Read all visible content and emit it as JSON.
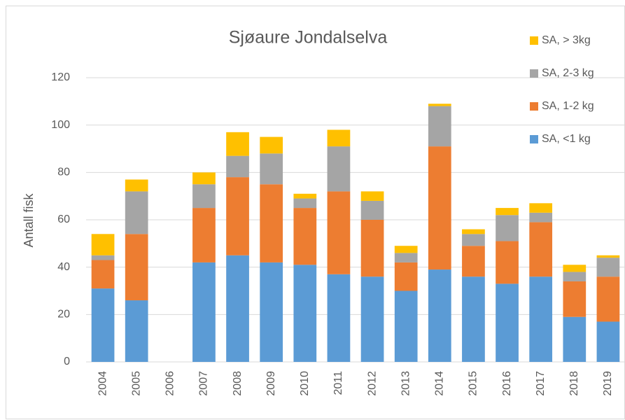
{
  "chart_data": {
    "type": "stacked-bar",
    "title": "Sjøaure Jondalselva",
    "y_label": "Antall fisk",
    "categories": [
      "2004",
      "2005",
      "2006",
      "2007",
      "2008",
      "2009",
      "2010",
      "2011",
      "2012",
      "2013",
      "2014",
      "2015",
      "2016",
      "2017",
      "2018",
      "2019"
    ],
    "series": [
      {
        "name": "SA, <1 kg",
        "color": "#5b9bd5",
        "values": [
          31,
          26,
          null,
          42,
          45,
          42,
          41,
          37,
          36,
          30,
          39,
          36,
          33,
          36,
          19,
          17
        ]
      },
      {
        "name": "SA, 1-2 kg",
        "color": "#ed7d31",
        "values": [
          12,
          28,
          null,
          23,
          33,
          33,
          24,
          35,
          24,
          12,
          52,
          13,
          18,
          23,
          15,
          19
        ]
      },
      {
        "name": "SA, 2-3 kg",
        "color": "#a5a5a5",
        "values": [
          2,
          18,
          null,
          10,
          9,
          13,
          4,
          19,
          8,
          4,
          17,
          5,
          11,
          4,
          4,
          8
        ]
      },
      {
        "name": "SA, > 3kg",
        "color": "#ffc000",
        "values": [
          9,
          5,
          null,
          5,
          10,
          7,
          2,
          7,
          4,
          3,
          1,
          2,
          3,
          4,
          3,
          1
        ]
      }
    ],
    "ylim": [
      0,
      120
    ],
    "yticks": [
      0,
      20,
      40,
      60,
      80,
      100,
      120
    ],
    "grid": true,
    "legend": "top-right"
  }
}
